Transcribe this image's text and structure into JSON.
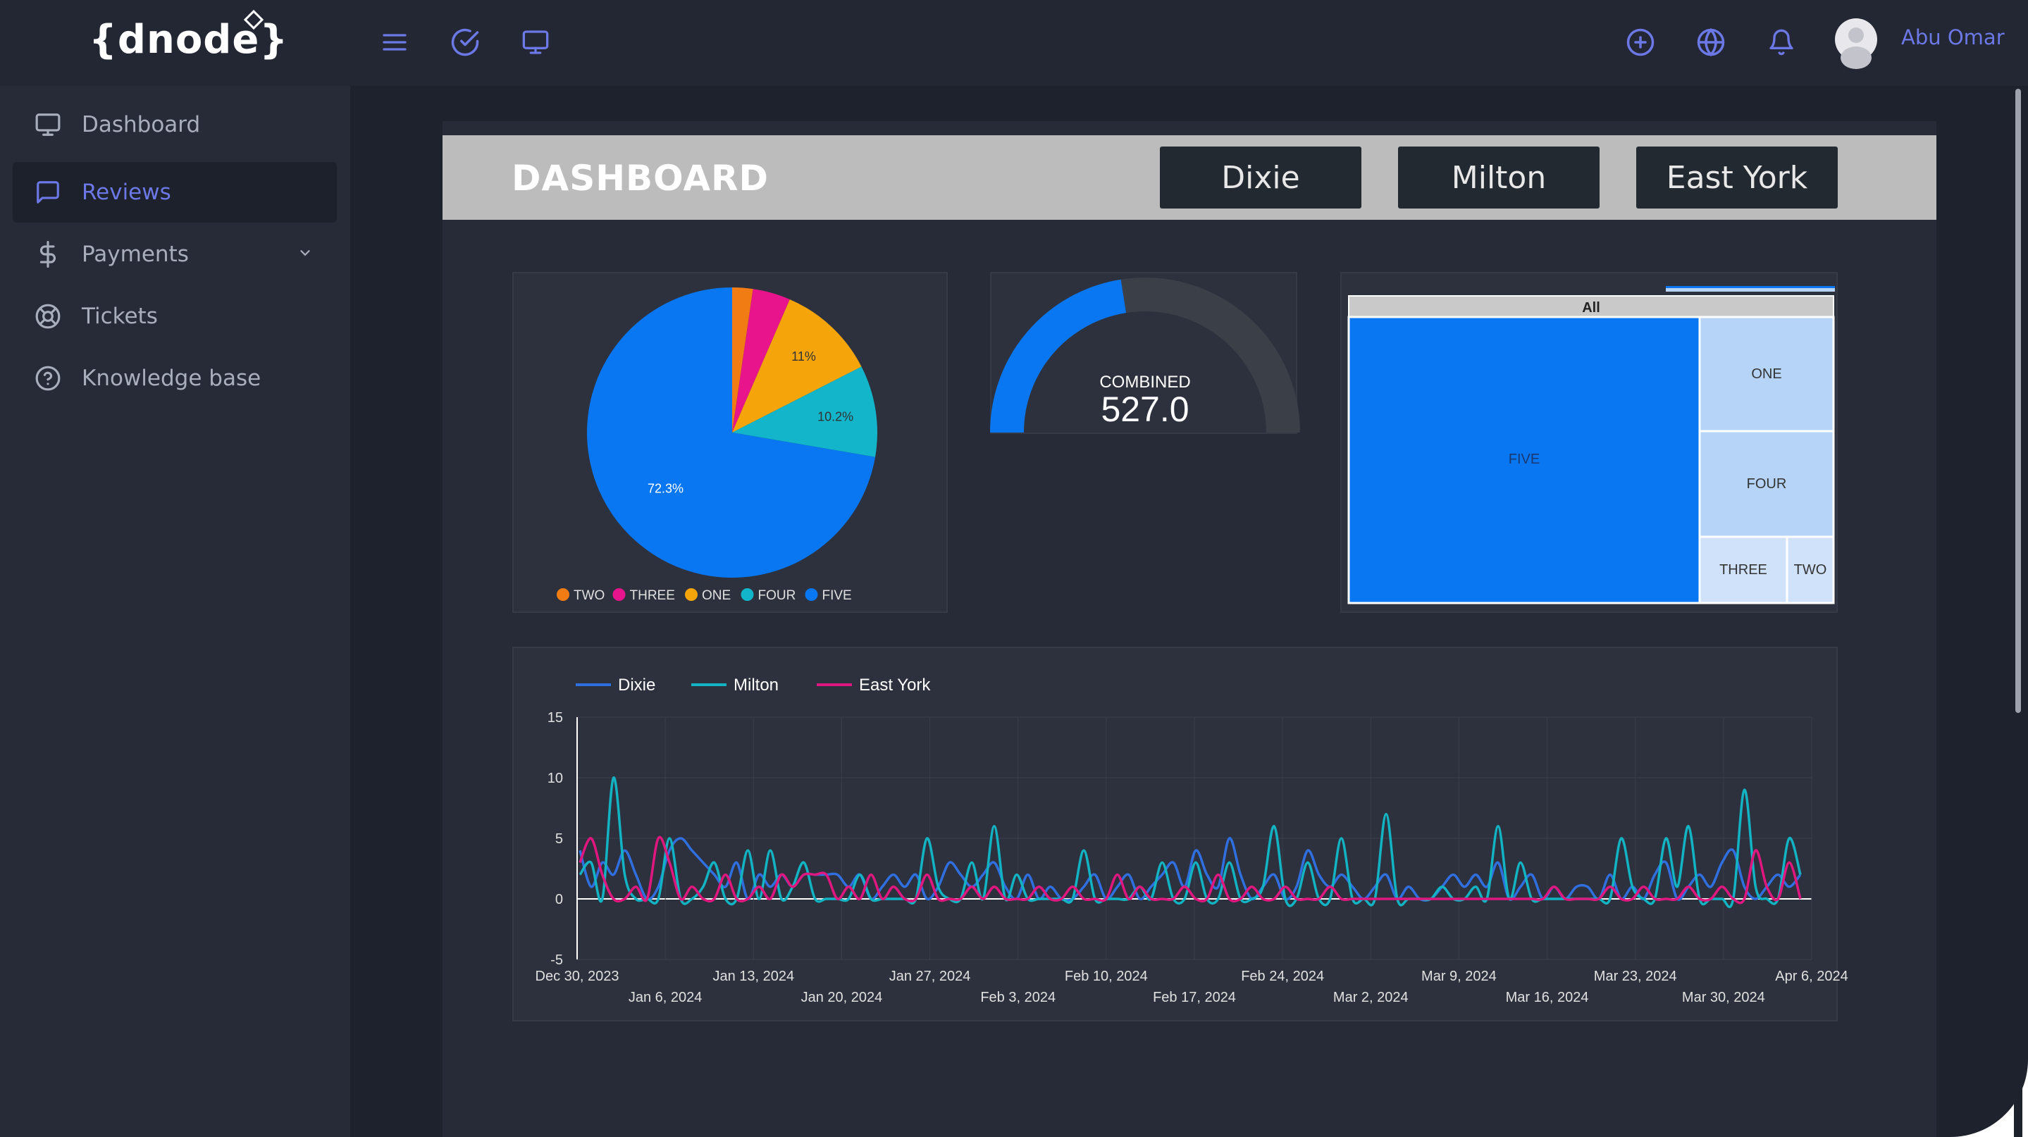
{
  "app": {
    "logo": "{dnode}"
  },
  "topbar": {
    "icons": [
      "menu-icon",
      "check-circle-icon",
      "monitor-icon",
      "plus-circle-icon",
      "globe-icon",
      "bell-icon"
    ],
    "user_name": "Abu Omar",
    "accent": "#6b78e6"
  },
  "sidebar": {
    "items": [
      {
        "label": "Dashboard",
        "icon": "monitor-icon"
      },
      {
        "label": "Reviews",
        "icon": "message-square-icon",
        "active": true
      },
      {
        "label": "Payments",
        "icon": "dollar-icon",
        "has_submenu": true
      },
      {
        "label": "Tickets",
        "icon": "life-buoy-icon"
      },
      {
        "label": "Knowledge base",
        "icon": "help-circle-icon"
      }
    ]
  },
  "dashboard": {
    "title": "DASHBOARD",
    "locations": [
      "Dixie",
      "Milton",
      "East York"
    ]
  },
  "chart_data": [
    {
      "type": "pie",
      "slices": [
        {
          "name": "TWO",
          "value": 2.3,
          "color": "#f07c13",
          "label": ""
        },
        {
          "name": "THREE",
          "value": 4.2,
          "color": "#e8148b",
          "label": ""
        },
        {
          "name": "ONE",
          "value": 11.0,
          "color": "#f5a50a",
          "label": "11%"
        },
        {
          "name": "FOUR",
          "value": 10.2,
          "color": "#12b5c9",
          "label": "10.2%"
        },
        {
          "name": "FIVE",
          "value": 72.3,
          "color": "#0877f1",
          "label": "72.3%"
        }
      ],
      "legend": [
        "TWO",
        "THREE",
        "ONE",
        "FOUR",
        "FIVE"
      ],
      "legend_position": "bottom"
    },
    {
      "type": "gauge",
      "label": "COMBINED",
      "value_text": "527.0",
      "fill_fraction": 0.45,
      "color": "#0877f1",
      "track_color": "#3b3f47"
    },
    {
      "type": "treemap",
      "header": "All",
      "cells": [
        {
          "name": "FIVE",
          "color": "#0877f1"
        },
        {
          "name": "ONE",
          "color": "#b6d4f7"
        },
        {
          "name": "FOUR",
          "color": "#b6d4f7"
        },
        {
          "name": "THREE",
          "color": "#cfe2fa"
        },
        {
          "name": "TWO",
          "color": "#cfe2fa"
        }
      ]
    },
    {
      "type": "line",
      "ylim": [
        -5,
        15
      ],
      "yticks": [
        15,
        10,
        5,
        0,
        -5
      ],
      "x_start": "2023-12-30",
      "x_ticks_top": [
        "Dec 30, 2023",
        "Jan 13, 2024",
        "Jan 27, 2024",
        "Feb 10, 2024",
        "Feb 24, 2024",
        "Mar 9, 2024",
        "Mar 23, 2024",
        "Apr 6, 2024"
      ],
      "x_ticks_bottom": [
        "Jan 6, 2024",
        "Jan 20, 2024",
        "Feb 3, 2024",
        "Feb 17, 2024",
        "Mar 2, 2024",
        "Mar 16, 2024",
        "Mar 30, 2024"
      ],
      "legend_position": "top-left",
      "grid": true,
      "series": [
        {
          "name": "Dixie",
          "color": "#2f6fe0",
          "values": [
            4,
            1,
            3,
            2,
            4,
            2,
            0,
            1,
            4,
            5,
            4,
            3,
            2,
            1,
            3,
            0,
            2,
            1,
            2,
            1,
            2,
            2,
            2,
            2,
            1,
            2,
            0,
            1,
            2,
            1,
            2,
            0,
            1,
            3,
            2,
            1,
            2,
            3,
            1,
            0,
            2,
            0,
            1,
            0,
            0,
            1,
            2,
            0,
            1,
            2,
            0,
            1,
            2,
            3,
            1,
            4,
            2,
            1,
            5,
            2,
            0,
            1,
            2,
            0,
            1,
            4,
            2,
            1,
            2,
            1,
            0,
            1,
            2,
            0,
            1,
            0,
            0,
            1,
            2,
            1,
            2,
            1,
            3,
            0,
            1,
            2,
            0,
            1,
            0,
            1,
            1,
            0,
            2,
            0,
            1,
            0,
            2,
            3,
            0,
            1,
            2,
            1,
            3,
            4,
            1,
            0,
            1,
            2,
            1,
            2
          ]
        },
        {
          "name": "Milton",
          "color": "#12b3c2",
          "values": [
            2,
            3,
            0,
            10,
            2,
            0,
            0,
            0,
            5,
            0,
            0,
            1,
            3,
            0,
            0,
            4,
            0,
            4,
            0,
            1,
            3,
            0,
            0,
            0,
            0,
            2,
            0,
            0,
            0,
            0,
            0,
            5,
            1,
            0,
            0,
            3,
            0,
            6,
            0,
            2,
            0,
            0,
            0,
            0,
            0,
            4,
            0,
            0,
            0,
            0,
            1,
            0,
            3,
            0,
            0,
            3,
            0,
            0,
            3,
            0,
            0,
            1,
            6,
            0,
            0,
            3,
            0,
            0,
            5,
            0,
            0,
            0,
            7,
            0,
            0,
            0,
            0,
            1,
            0,
            0,
            1,
            0,
            6,
            0,
            3,
            0,
            0,
            0,
            0,
            0,
            0,
            0,
            0,
            5,
            1,
            0,
            0,
            5,
            1,
            6,
            0,
            0,
            0,
            0,
            9,
            1,
            0,
            0,
            5,
            2
          ]
        },
        {
          "name": "East York",
          "color": "#e0177f",
          "values": [
            3,
            5,
            2,
            0,
            0,
            1,
            0,
            5,
            3,
            0,
            1,
            0,
            0,
            2,
            0,
            0,
            1,
            0,
            2,
            1,
            2,
            2,
            2,
            0,
            1,
            0,
            2,
            0,
            1,
            0,
            0,
            2,
            0,
            0,
            0,
            1,
            0,
            1,
            0,
            0,
            0,
            1,
            0,
            0,
            1,
            0,
            0,
            0,
            2,
            0,
            1,
            0,
            0,
            0,
            1,
            0,
            0,
            2,
            0,
            0,
            1,
            0,
            0,
            1,
            0,
            0,
            0,
            1,
            0,
            0,
            0,
            0,
            0,
            0,
            0,
            0,
            0,
            0,
            0,
            0,
            0,
            0,
            0,
            0,
            0,
            0,
            0,
            1,
            0,
            0,
            0,
            0,
            1,
            0,
            0,
            1,
            0,
            0,
            0,
            1,
            0,
            0,
            1,
            0,
            0,
            4,
            1,
            0,
            3,
            0
          ]
        }
      ]
    }
  ]
}
